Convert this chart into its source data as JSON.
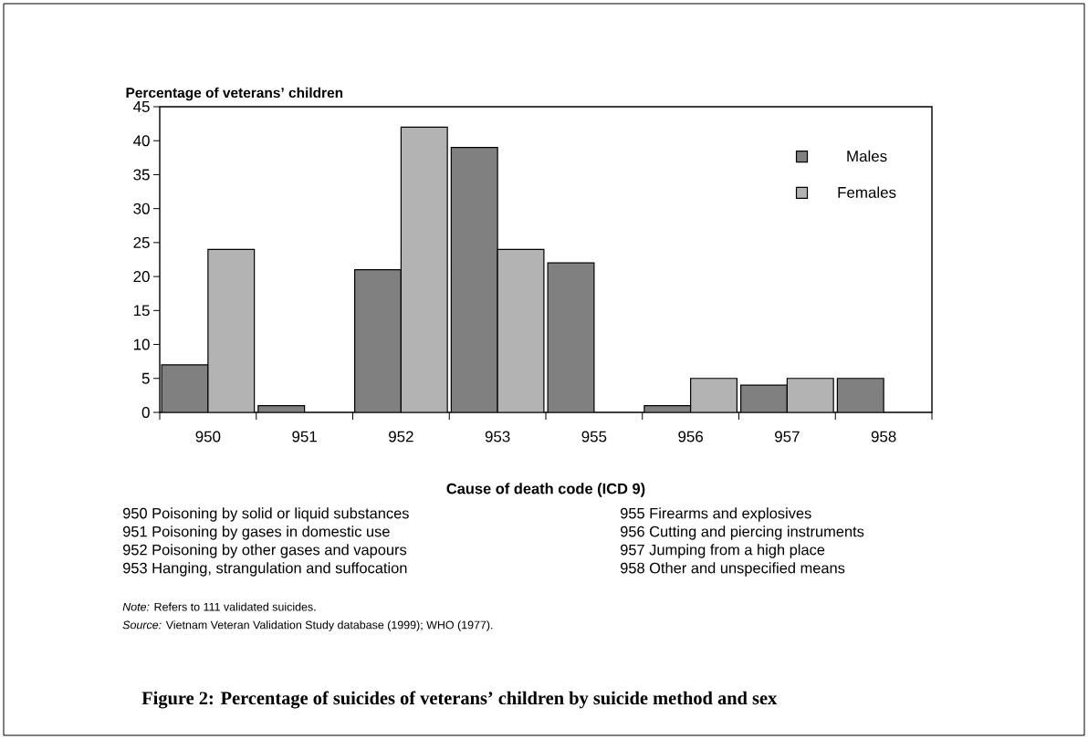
{
  "chart_data": {
    "type": "bar",
    "title": "Figure 2: Percentage of suicides of veterans’ children by suicide method and sex",
    "ylabel": "Percentage of veterans’ children",
    "xlabel": "Cause of death code (ICD 9)",
    "categories": [
      "950",
      "951",
      "952",
      "953",
      "955",
      "956",
      "957",
      "958"
    ],
    "series": [
      {
        "name": "Males",
        "color": "#808080",
        "values": [
          7,
          1,
          21,
          39,
          22,
          1,
          4,
          5
        ]
      },
      {
        "name": "Females",
        "color": "#b3b3b3",
        "values": [
          24,
          null,
          42,
          24,
          null,
          5,
          5,
          null
        ]
      }
    ],
    "ylim": [
      0,
      45
    ],
    "yticks": [
      0,
      5,
      10,
      15,
      20,
      25,
      30,
      35,
      40,
      45
    ],
    "legend": "top right",
    "grid": false,
    "annotations": [
      "950 Poisoning by solid or liquid substances",
      "951 Poisoning by gases in domestic use",
      "952 Poisoning by other gases and vapours",
      "953 Hanging, strangulation and suffocation",
      "955 Firearms and explosives",
      "956 Cutting and piercing instruments",
      "957 Jumping from a high place",
      "958 Other and unspecified means",
      "*Note:* Refers to 111 validated suicides.",
      "*Source:* Vietnam Veteran Validation Study database (1999); WHO (1977)."
    ]
  }
}
